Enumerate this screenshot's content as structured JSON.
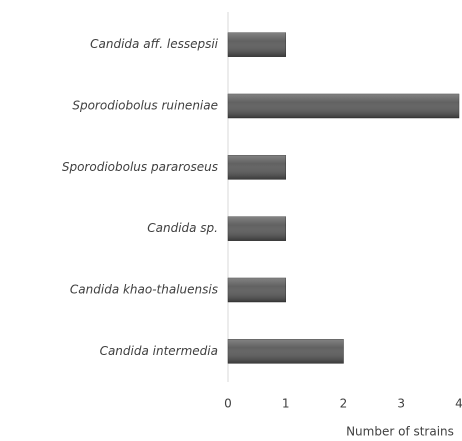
{
  "chart_data": {
    "type": "bar",
    "orientation": "horizontal",
    "categories": [
      "Candida aff. lessepsii",
      "Sporodiobolus ruineniae",
      "Sporodiobolus pararoseus",
      "Candida sp.",
      "Candida khao-thaluensis",
      "Candida intermedia"
    ],
    "values": [
      1,
      4,
      1,
      1,
      1,
      2
    ],
    "color": "#595959",
    "xlim": [
      0,
      4
    ],
    "xticks": [
      0,
      1,
      2,
      3,
      4
    ],
    "xlabel": "Number of strains",
    "grid": false
  }
}
